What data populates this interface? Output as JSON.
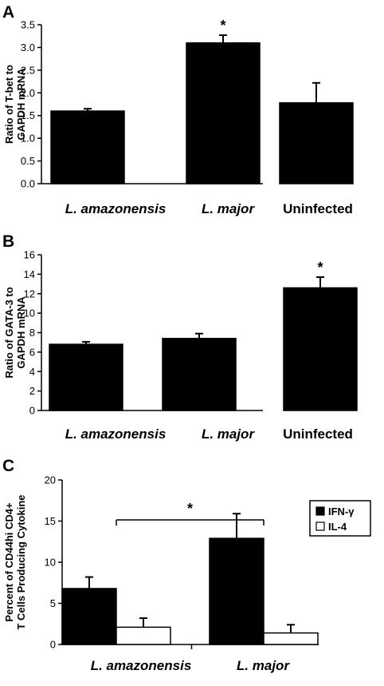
{
  "chart_data": [
    {
      "panel": "A",
      "type": "bar",
      "ylabel_lines": [
        "Ratio of T-bet to",
        "GAPDH mRNA"
      ],
      "ylim": [
        0,
        3.5
      ],
      "yticks": [
        "0.0",
        "0.5",
        "1.0",
        "1.5",
        "2.0",
        "2.5",
        "3.0",
        "3.5"
      ],
      "categories": [
        "L. amazonensis",
        "L. major",
        "Uninfected"
      ],
      "italic_categories": [
        true,
        true,
        false
      ],
      "series": [
        {
          "values": [
            1.6,
            3.1,
            1.78
          ],
          "errors": [
            0.05,
            0.17,
            0.44
          ],
          "fill": "#000000"
        }
      ],
      "significance": [
        "",
        "*",
        ""
      ]
    },
    {
      "panel": "B",
      "type": "bar",
      "ylabel_lines": [
        "Ratio of GATA-3 to",
        "GAPDH mRNA"
      ],
      "ylim": [
        0,
        16
      ],
      "yticks": [
        "0",
        "2",
        "4",
        "6",
        "8",
        "10",
        "12",
        "14",
        "16"
      ],
      "categories": [
        "L. amazonensis",
        "L. major",
        "Uninfected"
      ],
      "italic_categories": [
        true,
        true,
        false
      ],
      "series": [
        {
          "values": [
            6.8,
            7.4,
            12.6
          ],
          "errors": [
            0.25,
            0.5,
            1.1
          ],
          "fill": "#000000"
        }
      ],
      "significance": [
        "",
        "",
        "*"
      ]
    },
    {
      "panel": "C",
      "type": "bar",
      "ylabel_lines": [
        "Percent of CD44hi CD4+",
        "T Cells Producing Cytokine"
      ],
      "ylim": [
        0,
        20
      ],
      "yticks": [
        "0",
        "5",
        "10",
        "15",
        "20"
      ],
      "categories": [
        "L. amazonensis",
        "L. major"
      ],
      "italic_categories": [
        true,
        true
      ],
      "series": [
        {
          "name": "IFN-γ",
          "values": [
            6.8,
            12.9
          ],
          "errors": [
            1.4,
            3.0
          ],
          "fill": "#000000"
        },
        {
          "name": "IL-4",
          "values": [
            2.1,
            1.4
          ],
          "errors": [
            1.1,
            1.0
          ],
          "fill": "#ffffff"
        }
      ],
      "significance_bracket": {
        "from": "L. amazonensis",
        "to": "L. major",
        "label": "*"
      },
      "legend_position": "top-right"
    }
  ]
}
